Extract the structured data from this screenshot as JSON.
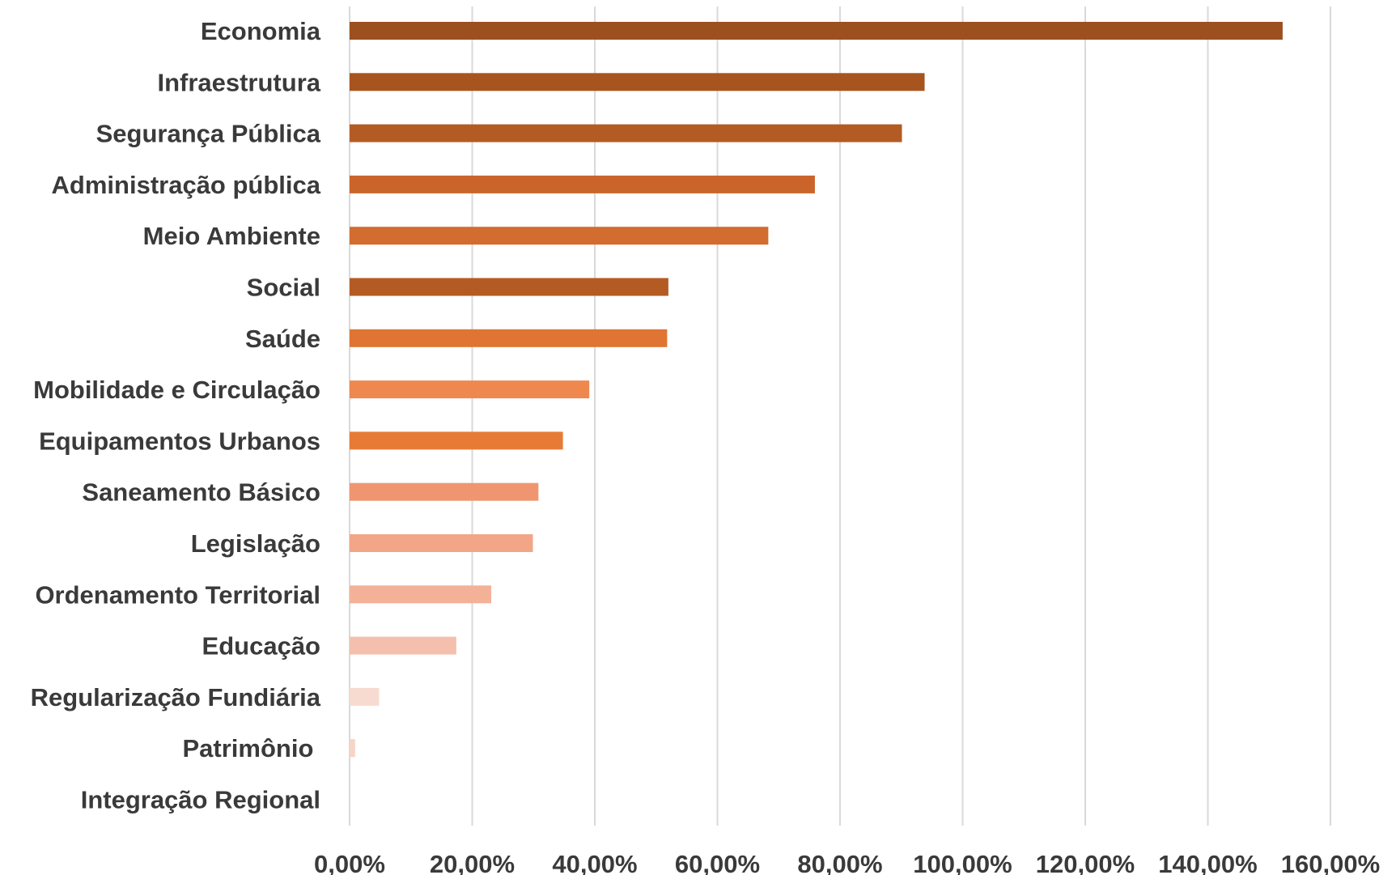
{
  "chart_data": {
    "type": "bar",
    "orientation": "horizontal",
    "title": "",
    "xlabel": "",
    "ylabel": "",
    "categories": [
      "Economia",
      "Infraestrutura",
      "Segurança Pública",
      "Administração pública",
      "Meio Ambiente",
      "Social",
      "Saúde",
      "Mobilidade e Circulação",
      "Equipamentos Urbanos",
      "Saneamento Básico",
      "Legislação",
      "Ordenamento Territorial",
      "Educação",
      "Regularização Fundiária",
      "Patrimônio ",
      "Integração Regional"
    ],
    "values": [
      152.2,
      93.8,
      90.1,
      75.9,
      68.3,
      52.0,
      51.8,
      39.1,
      34.8,
      30.8,
      29.9,
      23.1,
      17.4,
      4.8,
      0.9,
      0.0
    ],
    "bar_colors": [
      "#9c4f1f",
      "#a8541f",
      "#b45b24",
      "#cb642b",
      "#d26c2f",
      "#b45b24",
      "#e07433",
      "#ee884f",
      "#e77b36",
      "#ef9670",
      "#f2a687",
      "#f3b198",
      "#f4c0ad",
      "#f8dbd0",
      "#f7d4c6",
      "#f8dbd0"
    ],
    "xlim": [
      0,
      160
    ],
    "xticks": [
      "0,00%",
      "20,00%",
      "40,00%",
      "60,00%",
      "80,00%",
      "100,00%",
      "120,00%",
      "140,00%",
      "160,00%"
    ],
    "grid": true,
    "legend": "none"
  }
}
